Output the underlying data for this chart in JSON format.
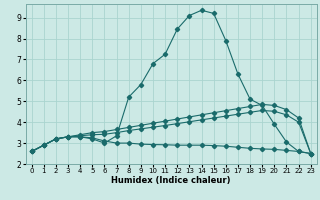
{
  "xlabel": "Humidex (Indice chaleur)",
  "xlim": [
    -0.5,
    23.5
  ],
  "ylim": [
    2.0,
    9.65
  ],
  "xticks": [
    0,
    1,
    2,
    3,
    4,
    5,
    6,
    7,
    8,
    9,
    10,
    11,
    12,
    13,
    14,
    15,
    16,
    17,
    18,
    19,
    20,
    21,
    22,
    23
  ],
  "yticks": [
    2,
    3,
    4,
    5,
    6,
    7,
    8,
    9
  ],
  "bg_color": "#cce9e5",
  "grid_color": "#aad4cf",
  "line_color": "#1a6b6b",
  "line1_x": [
    0,
    1,
    2,
    3,
    4,
    5,
    6,
    7,
    8,
    9,
    10,
    11,
    12,
    13,
    14,
    15,
    16,
    17,
    18,
    19,
    20,
    21,
    22,
    23
  ],
  "line1_y": [
    2.6,
    2.9,
    3.2,
    3.3,
    3.3,
    3.2,
    3.0,
    3.35,
    5.2,
    5.8,
    6.8,
    7.25,
    8.45,
    9.1,
    9.35,
    9.2,
    7.9,
    6.3,
    5.1,
    4.8,
    3.9,
    3.05,
    2.6,
    2.5
  ],
  "line2_x": [
    0,
    1,
    2,
    3,
    4,
    5,
    6,
    7,
    8,
    9,
    10,
    11,
    12,
    13,
    14,
    15,
    16,
    17,
    18,
    19,
    20,
    21,
    22,
    23
  ],
  "line2_y": [
    2.6,
    2.9,
    3.2,
    3.3,
    3.4,
    3.5,
    3.55,
    3.65,
    3.75,
    3.85,
    3.95,
    4.05,
    4.15,
    4.25,
    4.35,
    4.45,
    4.55,
    4.65,
    4.75,
    4.85,
    4.8,
    4.6,
    4.2,
    2.5
  ],
  "line3_x": [
    0,
    1,
    2,
    3,
    4,
    5,
    6,
    7,
    8,
    9,
    10,
    11,
    12,
    13,
    14,
    15,
    16,
    17,
    18,
    19,
    20,
    21,
    22,
    23
  ],
  "line3_y": [
    2.6,
    2.9,
    3.2,
    3.3,
    3.35,
    3.4,
    3.42,
    3.5,
    3.6,
    3.68,
    3.76,
    3.84,
    3.93,
    4.02,
    4.11,
    4.2,
    4.29,
    4.38,
    4.47,
    4.56,
    4.52,
    4.35,
    4.0,
    2.5
  ],
  "line4_x": [
    0,
    1,
    2,
    3,
    4,
    5,
    6,
    7,
    8,
    9,
    10,
    11,
    12,
    13,
    14,
    15,
    16,
    17,
    18,
    19,
    20,
    21,
    22,
    23
  ],
  "line4_y": [
    2.6,
    2.9,
    3.2,
    3.3,
    3.3,
    3.25,
    3.1,
    3.0,
    3.0,
    2.95,
    2.93,
    2.92,
    2.9,
    2.9,
    2.9,
    2.88,
    2.85,
    2.8,
    2.75,
    2.72,
    2.7,
    2.65,
    2.6,
    2.5
  ]
}
